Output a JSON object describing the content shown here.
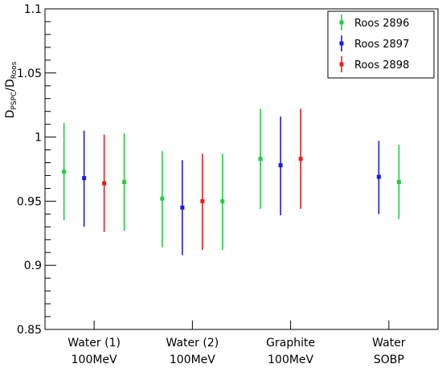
{
  "chart_data": {
    "type": "scatter",
    "ylabel_main": "D",
    "ylabel_sub1": "PSPC",
    "ylabel_slash": "/D",
    "ylabel_sub2": "Roos",
    "ylim": [
      0.85,
      1.1
    ],
    "yticks": [
      {
        "value": 0.85,
        "label": "0.85"
      },
      {
        "value": 0.9,
        "label": "0.9"
      },
      {
        "value": 0.95,
        "label": "0.95"
      },
      {
        "value": 1.0,
        "label": "1"
      },
      {
        "value": 1.05,
        "label": "1.05"
      },
      {
        "value": 1.1,
        "label": "1.1"
      }
    ],
    "categories": [
      {
        "line1": "Water (1)",
        "line2": "100MeV"
      },
      {
        "line1": "Water (2)",
        "line2": "100MeV"
      },
      {
        "line1": "Graphite",
        "line2": "100MeV"
      },
      {
        "line1": "Water",
        "line2": "SOBP"
      }
    ],
    "legend_position": "top-right",
    "series": [
      {
        "name": "Roos 2896",
        "color": "#22cc44"
      },
      {
        "name": "Roos 2897",
        "color": "#1a1ae6"
      },
      {
        "name": "Roos 2898",
        "color": "#ee1c1c"
      }
    ],
    "points": [
      {
        "category": 0,
        "series": 0,
        "offset": -1.5,
        "y": 0.973,
        "low": 0.935,
        "high": 1.011
      },
      {
        "category": 0,
        "series": 1,
        "offset": -0.5,
        "y": 0.968,
        "low": 0.93,
        "high": 1.005
      },
      {
        "category": 0,
        "series": 2,
        "offset": 0.5,
        "y": 0.964,
        "low": 0.926,
        "high": 1.002
      },
      {
        "category": 0,
        "series": 0,
        "offset": 1.5,
        "y": 0.965,
        "low": 0.927,
        "high": 1.003
      },
      {
        "category": 1,
        "series": 0,
        "offset": -1.5,
        "y": 0.952,
        "low": 0.914,
        "high": 0.989
      },
      {
        "category": 1,
        "series": 1,
        "offset": -0.5,
        "y": 0.945,
        "low": 0.908,
        "high": 0.982
      },
      {
        "category": 1,
        "series": 2,
        "offset": 0.5,
        "y": 0.95,
        "low": 0.912,
        "high": 0.987
      },
      {
        "category": 1,
        "series": 0,
        "offset": 1.5,
        "y": 0.95,
        "low": 0.912,
        "high": 0.987
      },
      {
        "category": 2,
        "series": 0,
        "offset": -1.5,
        "y": 0.983,
        "low": 0.944,
        "high": 1.022
      },
      {
        "category": 2,
        "series": 1,
        "offset": -0.5,
        "y": 0.978,
        "low": 0.939,
        "high": 1.016
      },
      {
        "category": 2,
        "series": 2,
        "offset": 0.5,
        "y": 0.983,
        "low": 0.944,
        "high": 1.022
      },
      {
        "category": 3,
        "series": 1,
        "offset": -0.5,
        "y": 0.969,
        "low": 0.94,
        "high": 0.997
      },
      {
        "category": 3,
        "series": 0,
        "offset": 0.5,
        "y": 0.965,
        "low": 0.936,
        "high": 0.994
      }
    ]
  }
}
